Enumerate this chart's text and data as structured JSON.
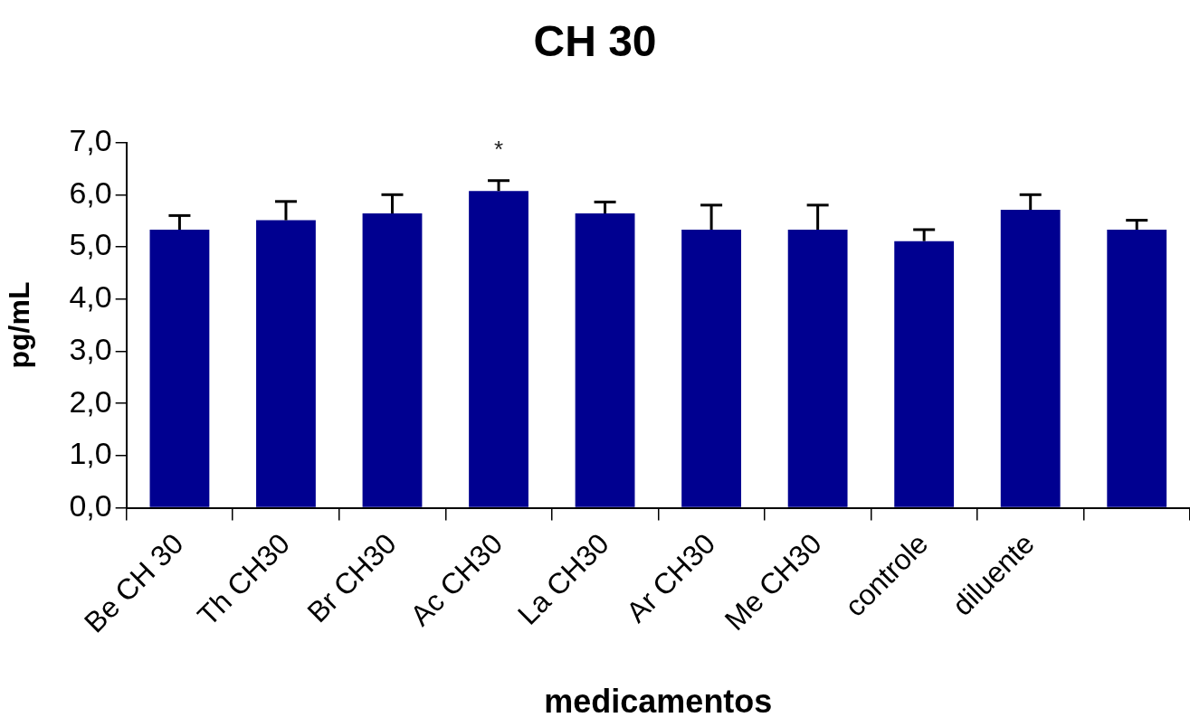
{
  "chart_data": {
    "type": "bar",
    "title": "CH 30",
    "xlabel": "medicamentos",
    "ylabel": "pg/mL",
    "categories": [
      "Be CH 30",
      "Th CH30",
      "Br CH30",
      "Ac CH30",
      "La CH30",
      "Ar CH30",
      "Me CH30",
      "controle",
      "diluente",
      null
    ],
    "values": [
      5.33,
      5.51,
      5.64,
      6.07,
      5.64,
      5.33,
      5.33,
      5.11,
      5.71,
      5.33
    ],
    "errors": [
      [
        5.33,
        5.6
      ],
      [
        5.51,
        5.87
      ],
      [
        5.64,
        6.0
      ],
      [
        6.07,
        6.27
      ],
      [
        5.64,
        5.86
      ],
      [
        5.33,
        5.8
      ],
      [
        5.33,
        5.8
      ],
      [
        5.11,
        5.33
      ],
      [
        5.71,
        6.0
      ],
      [
        5.33,
        5.51
      ]
    ],
    "color": "#000090",
    "ylim": [
      0,
      7
    ],
    "yticks": [
      {
        "value": 0,
        "label": "0,0"
      },
      {
        "value": 1,
        "label": "1,0"
      },
      {
        "value": 2,
        "label": "2,0"
      },
      {
        "value": 3,
        "label": "3,0"
      },
      {
        "value": 4,
        "label": "4,0"
      },
      {
        "value": 5,
        "label": "5,0"
      },
      {
        "value": 6,
        "label": "6,0"
      },
      {
        "value": 7,
        "label": "7,0"
      }
    ],
    "annotations": [
      {
        "text": "*",
        "x": "Ac CH30",
        "y": 6.27
      }
    ],
    "grid": false,
    "legend": false
  }
}
